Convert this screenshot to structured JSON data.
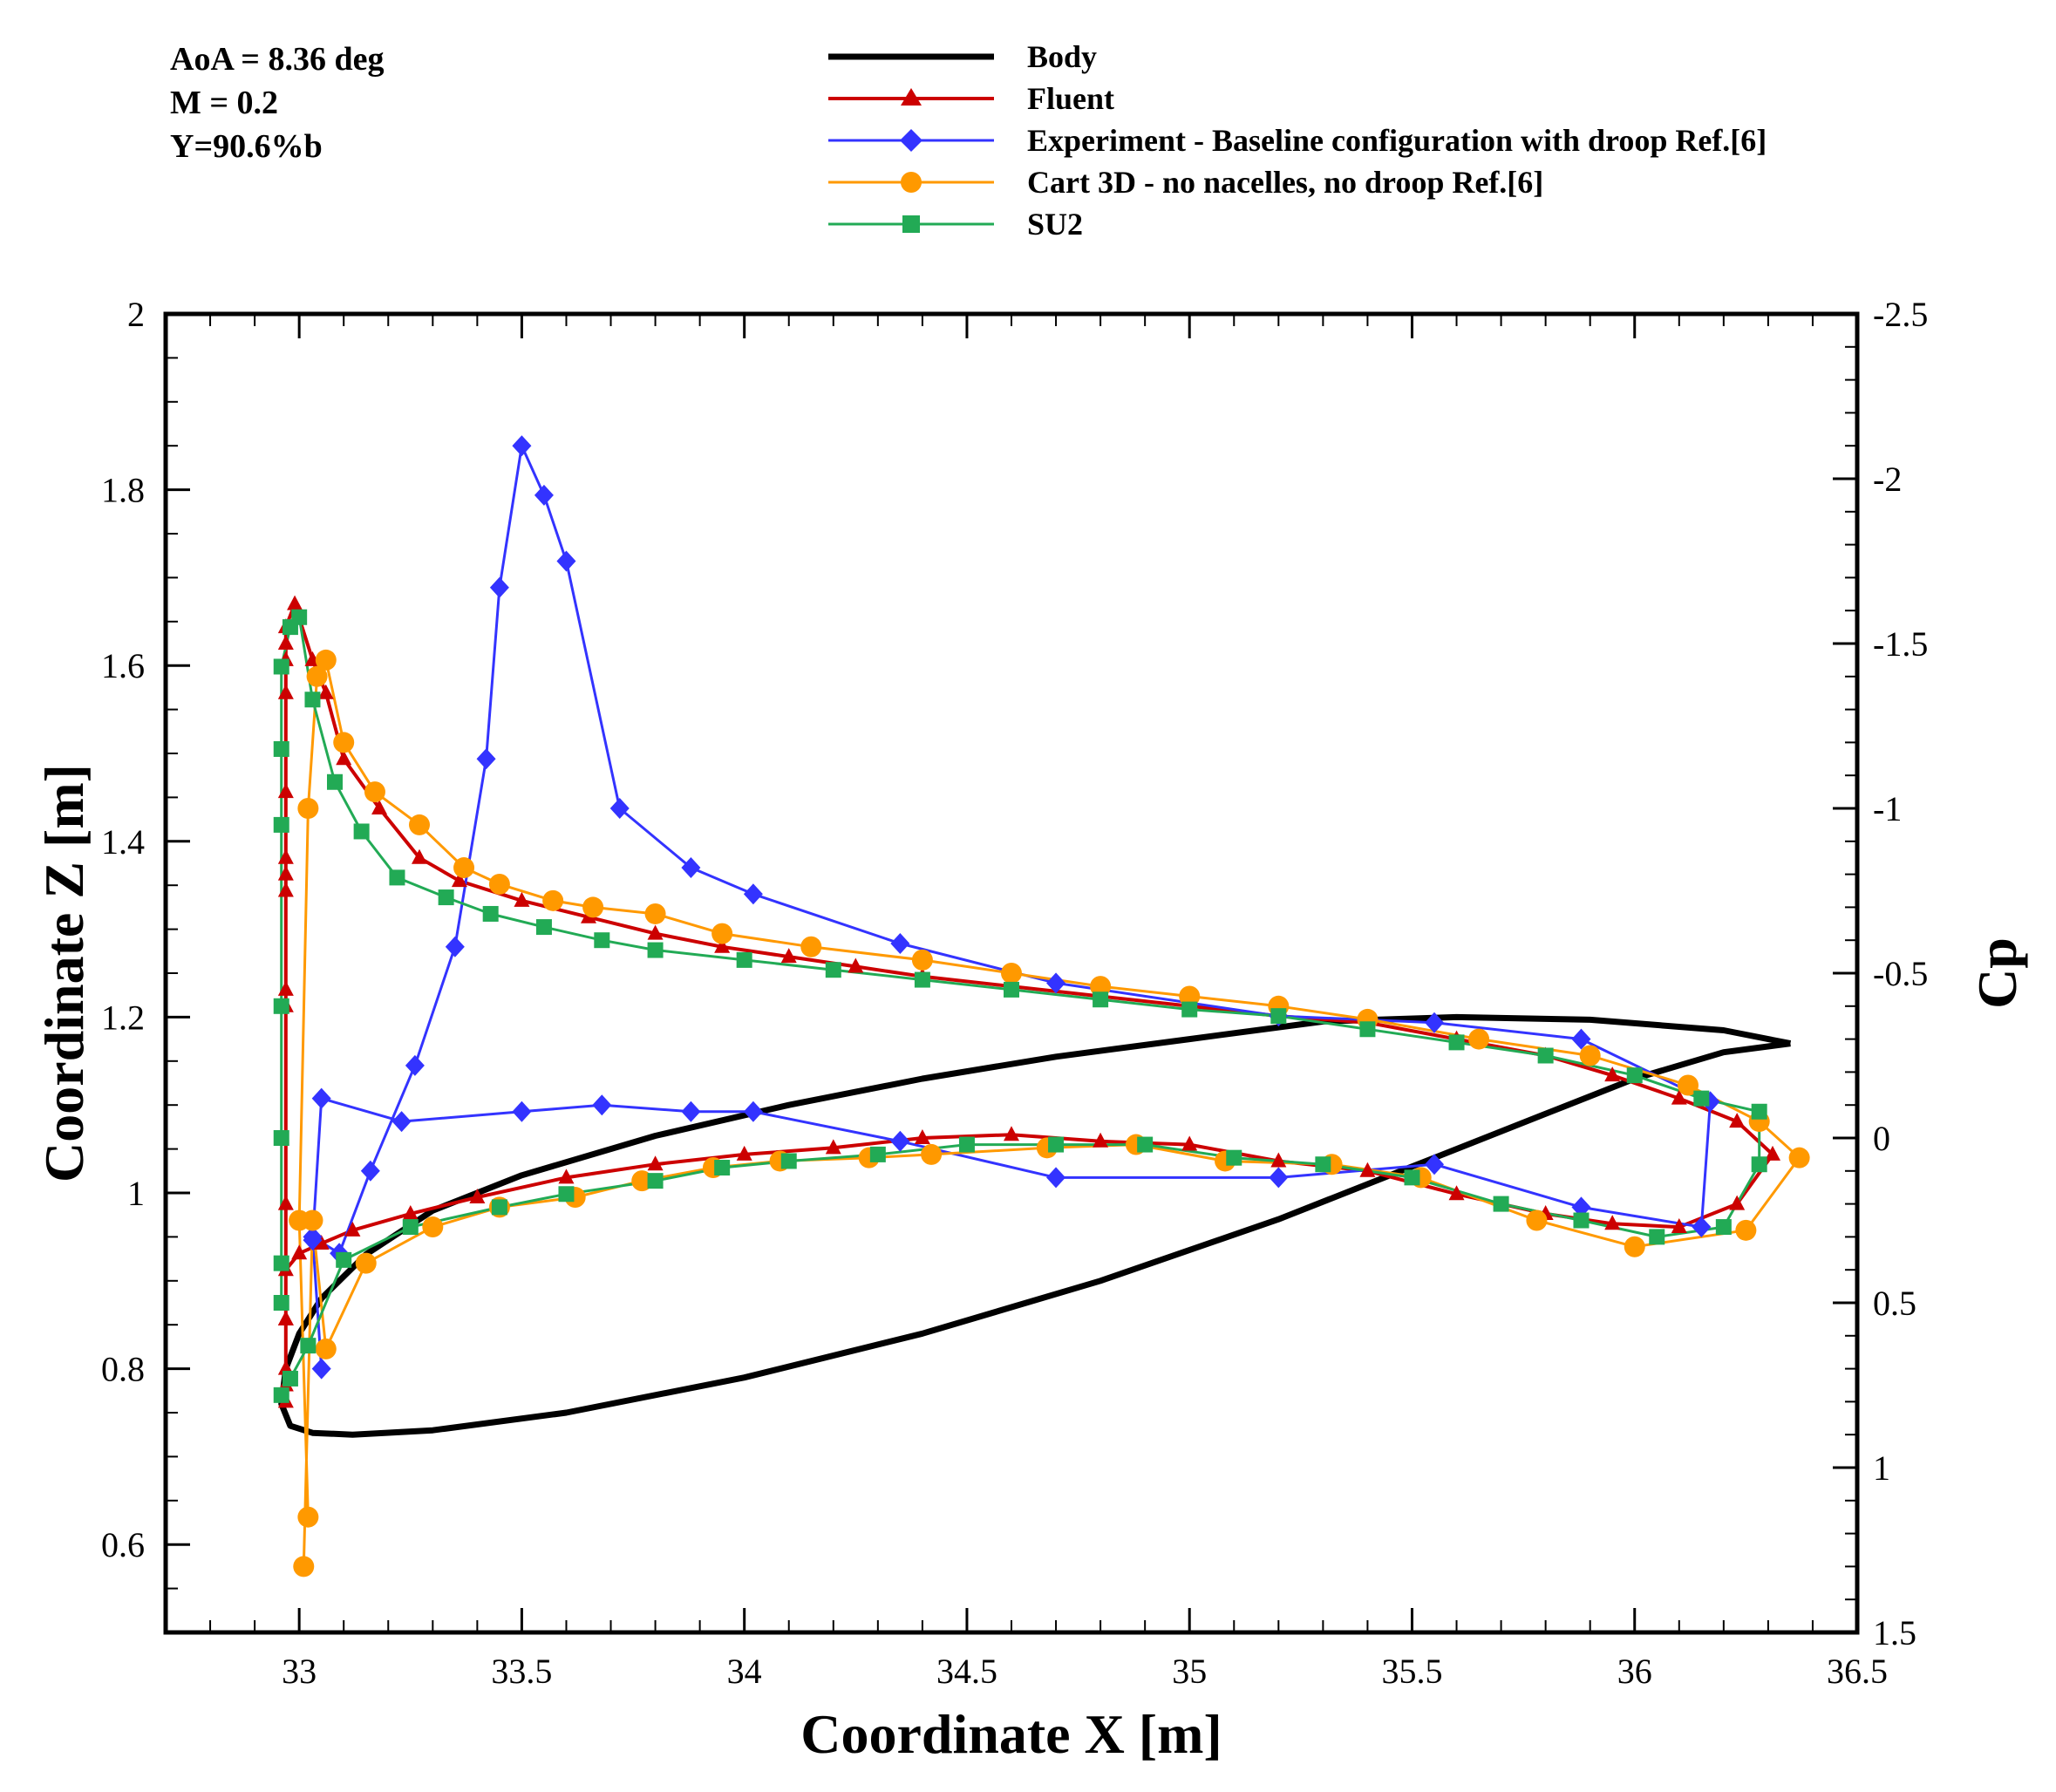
{
  "chart_data": {
    "type": "line",
    "title": "",
    "conditions": [
      "AoA = 8.36 deg",
      "M = 0.2",
      "Y=90.6%b"
    ],
    "xlabel": "Coordinate X [m]",
    "ylabel": "Coordinate Z [m]",
    "y2label": "Cp",
    "xlim": [
      32.7,
      36.5
    ],
    "ylim": [
      0.5,
      2.0
    ],
    "y2lim": [
      1.5,
      -2.5
    ],
    "xticks": [
      33,
      33.5,
      34,
      34.5,
      35,
      35.5,
      36,
      36.5
    ],
    "xtick_labels": [
      "33",
      "33.5",
      "34",
      "34.5",
      "35",
      "35.5",
      "36",
      "36.5"
    ],
    "yticks": [
      0.6,
      0.8,
      1.0,
      1.2,
      1.4,
      1.6,
      1.8,
      2.0
    ],
    "ytick_labels": [
      "0.6",
      "0.8",
      "1",
      "1.2",
      "1.4",
      "1.6",
      "1.8",
      "2"
    ],
    "y2ticks": [
      1.5,
      1.0,
      0.5,
      0,
      -0.5,
      -1,
      -1.5,
      -2,
      -2.5
    ],
    "y2tick_labels": [
      "1.5",
      "1",
      "0.5",
      "0",
      "-0.5",
      "-1",
      "-1.5",
      "-2",
      "-2.5"
    ],
    "legend": [
      "Body",
      "Fluent",
      "Experiment - Baseline configuration with droop Ref.[6]",
      "Cart 3D - no nacelles, no droop Ref.[6]",
      "SU2"
    ],
    "legend_position": "top-center",
    "colors": {
      "Body": "#000000",
      "Fluent": "#cc0000",
      "Experiment": "#3333ff",
      "Cart3D": "#ff9900",
      "SU2": "#22aa55"
    },
    "series": [
      {
        "name": "Body",
        "axis": "left",
        "marker": "none",
        "x": [
          36.35,
          36.2,
          35.9,
          35.6,
          35.3,
          35.0,
          34.7,
          34.4,
          34.1,
          33.8,
          33.5,
          33.3,
          33.15,
          33.05,
          33.0,
          32.97,
          32.96,
          32.98,
          33.03,
          33.12,
          33.3,
          33.6,
          34.0,
          34.4,
          34.8,
          35.2,
          35.5,
          35.8,
          36.0,
          36.2,
          36.35
        ],
        "y": [
          1.17,
          1.185,
          1.197,
          1.2,
          1.195,
          1.175,
          1.155,
          1.13,
          1.1,
          1.065,
          1.02,
          0.98,
          0.93,
          0.88,
          0.84,
          0.8,
          0.76,
          0.735,
          0.727,
          0.725,
          0.73,
          0.75,
          0.79,
          0.84,
          0.9,
          0.97,
          1.03,
          1.09,
          1.13,
          1.16,
          1.17
        ]
      },
      {
        "name": "Fluent",
        "axis": "right",
        "marker": "triangle",
        "x": [
          32.97,
          32.97,
          32.97,
          32.97,
          32.97,
          32.97,
          32.97,
          32.97,
          32.97,
          32.97,
          32.97,
          32.97,
          32.99,
          33.03,
          33.06,
          33.1,
          33.18,
          33.27,
          33.36,
          33.5,
          33.65,
          33.8,
          33.95,
          34.1,
          34.25,
          34.4,
          34.6,
          34.8,
          35.0,
          35.2,
          35.4,
          35.6,
          35.8,
          35.95,
          36.1,
          36.23,
          36.31,
          36.23,
          36.1,
          35.95,
          35.8,
          35.6,
          35.4,
          35.2,
          35.0,
          34.8,
          34.6,
          34.4,
          34.2,
          34.0,
          33.8,
          33.6,
          33.4,
          33.25,
          33.12,
          33.05,
          33.0,
          32.97,
          32.97,
          32.97,
          32.97,
          32.97
        ],
        "y": [
          -0.4,
          0.2,
          0.55,
          -0.45,
          -0.75,
          -0.8,
          -0.85,
          -1.05,
          -1.35,
          -1.45,
          -1.5,
          -1.55,
          -1.62,
          -1.45,
          -1.35,
          -1.15,
          -1.0,
          -0.85,
          -0.78,
          -0.72,
          -0.67,
          -0.62,
          -0.58,
          -0.55,
          -0.52,
          -0.49,
          -0.46,
          -0.43,
          -0.4,
          -0.37,
          -0.35,
          -0.3,
          -0.25,
          -0.19,
          -0.12,
          -0.05,
          0.05,
          0.2,
          0.27,
          0.26,
          0.23,
          0.17,
          0.1,
          0.07,
          0.02,
          0.01,
          -0.01,
          0.0,
          0.03,
          0.05,
          0.08,
          0.12,
          0.18,
          0.23,
          0.28,
          0.32,
          0.35,
          0.4,
          0.55,
          0.7,
          0.75,
          0.8
        ]
      },
      {
        "name": "Experiment - Baseline configuration with droop Ref.[6]",
        "axis": "right",
        "marker": "diamond",
        "x": [
          33.05,
          33.03,
          33.09,
          33.16,
          33.26,
          33.35,
          33.42,
          33.45,
          33.5,
          33.55,
          33.6,
          33.72,
          33.88,
          34.02,
          34.35,
          34.7,
          35.2,
          35.55,
          35.88,
          36.17,
          36.15,
          35.88,
          35.55,
          35.2,
          34.7,
          34.35,
          34.02,
          33.88,
          33.68,
          33.5,
          33.23,
          33.05,
          33.03
        ],
        "y": [
          0.7,
          0.3,
          0.35,
          0.1,
          -0.22,
          -0.58,
          -1.15,
          -1.67,
          -2.1,
          -1.95,
          -1.75,
          -1.0,
          -0.82,
          -0.74,
          -0.59,
          -0.47,
          -0.37,
          -0.35,
          -0.3,
          -0.11,
          0.27,
          0.21,
          0.08,
          0.12,
          0.12,
          0.01,
          -0.08,
          -0.08,
          -0.1,
          -0.08,
          -0.05,
          -0.12,
          0.31
        ]
      },
      {
        "name": "Cart 3D - no nacelles, no droop Ref.[6]",
        "axis": "right",
        "marker": "circle",
        "x": [
          33.02,
          33.0,
          33.02,
          33.04,
          33.06,
          33.1,
          33.17,
          33.27,
          33.37,
          33.45,
          33.57,
          33.66,
          33.8,
          33.95,
          34.15,
          34.4,
          34.6,
          34.8,
          35.0,
          35.2,
          35.4,
          35.65,
          35.9,
          36.12,
          36.28,
          36.37,
          36.25,
          36.0,
          35.78,
          35.52,
          35.32,
          35.08,
          34.88,
          34.68,
          34.42,
          34.28,
          34.08,
          33.93,
          33.77,
          33.62,
          33.45,
          33.3,
          33.15,
          33.06,
          33.03,
          33.01
        ],
        "y": [
          1.15,
          0.25,
          -1.0,
          -1.4,
          -1.45,
          -1.2,
          -1.05,
          -0.95,
          -0.82,
          -0.77,
          -0.72,
          -0.7,
          -0.68,
          -0.62,
          -0.58,
          -0.54,
          -0.5,
          -0.46,
          -0.43,
          -0.4,
          -0.36,
          -0.3,
          -0.25,
          -0.16,
          -0.05,
          0.06,
          0.28,
          0.33,
          0.25,
          0.12,
          0.08,
          0.07,
          0.02,
          0.03,
          0.05,
          0.06,
          0.07,
          0.09,
          0.13,
          0.18,
          0.21,
          0.27,
          0.38,
          0.64,
          0.25,
          1.3
        ]
      },
      {
        "name": "SU2",
        "axis": "right",
        "marker": "square",
        "x": [
          32.96,
          32.96,
          32.96,
          32.96,
          32.96,
          32.96,
          32.96,
          32.98,
          33.0,
          33.03,
          33.08,
          33.14,
          33.22,
          33.33,
          33.43,
          33.55,
          33.68,
          33.8,
          34.0,
          34.2,
          34.4,
          34.6,
          34.8,
          35.0,
          35.2,
          35.4,
          35.6,
          35.8,
          36.0,
          36.15,
          36.28,
          36.28,
          36.2,
          36.05,
          35.88,
          35.7,
          35.5,
          35.3,
          35.1,
          34.9,
          34.7,
          34.5,
          34.3,
          34.1,
          33.95,
          33.8,
          33.6,
          33.45,
          33.25,
          33.1,
          33.02,
          32.98,
          32.96
        ],
        "y": [
          0.5,
          0.38,
          0.0,
          -0.4,
          -0.95,
          -1.18,
          -1.43,
          -1.55,
          -1.58,
          -1.33,
          -1.08,
          -0.93,
          -0.79,
          -0.73,
          -0.68,
          -0.64,
          -0.6,
          -0.57,
          -0.54,
          -0.51,
          -0.48,
          -0.45,
          -0.42,
          -0.39,
          -0.37,
          -0.33,
          -0.29,
          -0.25,
          -0.19,
          -0.12,
          -0.08,
          0.08,
          0.27,
          0.3,
          0.25,
          0.2,
          0.12,
          0.08,
          0.06,
          0.02,
          0.02,
          0.02,
          0.05,
          0.07,
          0.09,
          0.13,
          0.17,
          0.21,
          0.27,
          0.37,
          0.63,
          0.73,
          0.78
        ]
      }
    ]
  }
}
